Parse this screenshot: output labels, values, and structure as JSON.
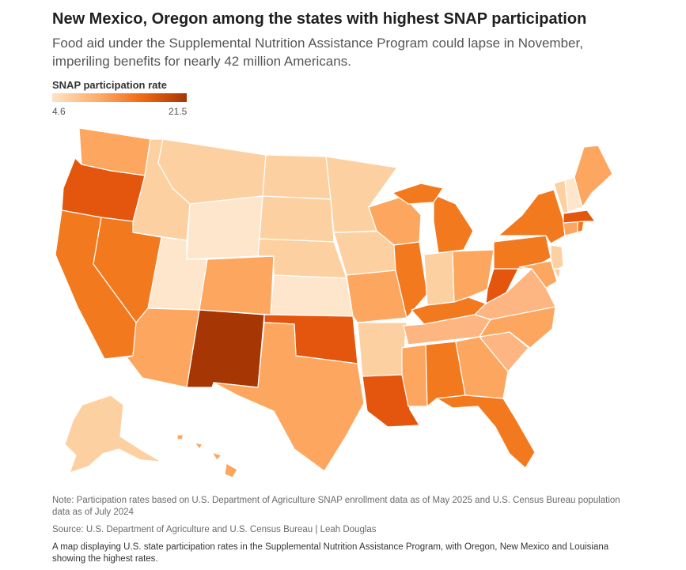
{
  "header": {
    "title": "New Mexico, Oregon among the states with highest SNAP participation",
    "subtitle": "Food aid under the Supplemental Nutrition Assistance Program could lapse in November, imperiling benefits for nearly 42 million Americans."
  },
  "legend": {
    "title": "SNAP participation rate",
    "min": "4.6",
    "max": "21.5",
    "colors": [
      "#fee3c4",
      "#fdae6b",
      "#f16913",
      "#a63603"
    ]
  },
  "footer": {
    "note": "Note: Participation rates based on U.S. Department of Agriculture SNAP enrollment data as of May 2025 and U.S. Census Bureau population data as of July 2024",
    "source": "Source: U.S. Department of Agriculture and U.S. Census Bureau | Leah Douglas",
    "alt_text": "A map displaying U.S. state participation rates in the Supplemental Nutrition Assistance Program, with Oregon, New Mexico and Louisiana showing the highest rates."
  },
  "colors": {
    "lightest": "#fee6cd",
    "light": "#fdd0a2",
    "medium": "#fda65f",
    "dark": "#f3791f",
    "darker": "#e4550d",
    "darkest": "#a63603"
  },
  "chart_data": {
    "type": "choropleth",
    "value_label": "SNAP participation rate",
    "range": [
      4.6,
      21.5
    ],
    "highlighted_states": [
      "Oregon",
      "New Mexico",
      "Louisiana"
    ]
  }
}
